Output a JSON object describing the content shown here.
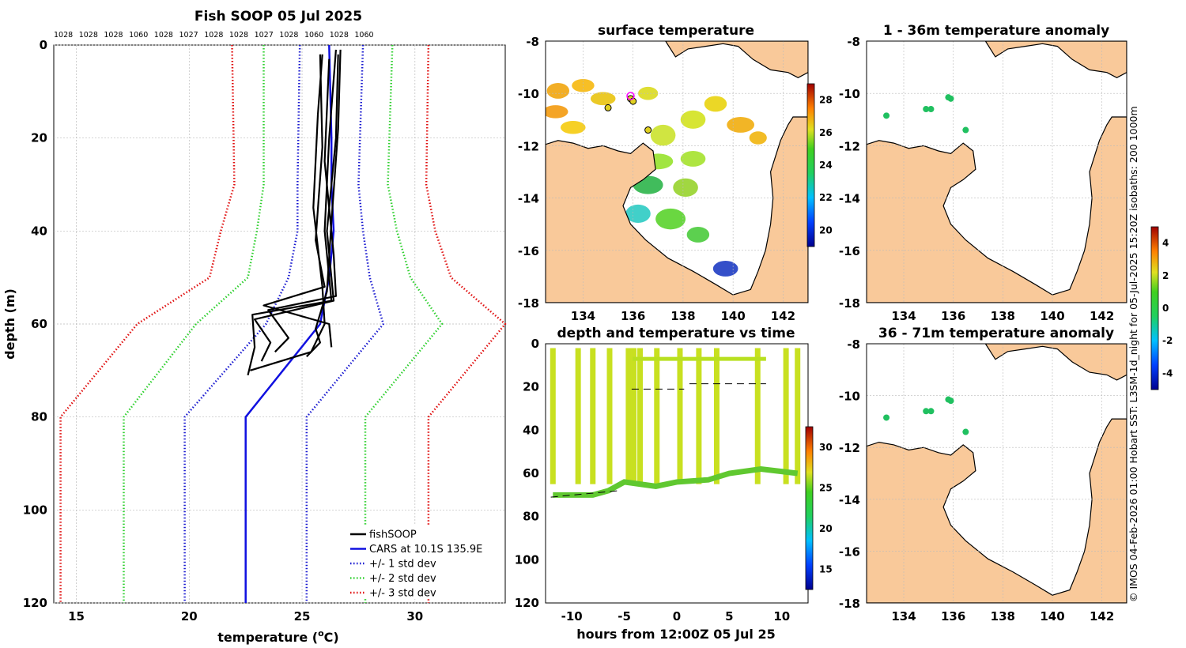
{
  "colors": {
    "land": "#f9c99a",
    "fishsoop": "#000000",
    "cars": "#1010e0",
    "std1": "#1a1ad0",
    "std2": "#30d030",
    "std3": "#e01010",
    "grid": "#bbbbbb"
  },
  "profile": {
    "title": "Fish SOOP 05 Jul 2025",
    "top_labels": [
      "1028",
      "1028",
      "1028",
      "1060",
      "1028",
      "1027",
      "1028",
      "1028",
      "1027",
      "1028",
      "1060",
      "1028",
      "1060"
    ],
    "xlabel": "temperature (",
    "xlabel_sup": "o",
    "xlabel_end": "C)",
    "ylabel": "depth (m)",
    "xticks": [
      "15",
      "20",
      "25",
      "30"
    ],
    "yticks": [
      "0",
      "20",
      "40",
      "60",
      "80",
      "100",
      "120"
    ],
    "legend": [
      "fishSOOP",
      "CARS at 10.1S 135.9E",
      "+/- 1 std dev",
      "+/- 2 std dev",
      "+/- 3 std dev"
    ]
  },
  "maps": {
    "surface_title": "surface temperature",
    "anom1_title": "1 - 36m temperature anomaly",
    "anom2_title": "36 - 71m temperature anomaly",
    "lat_ticks": [
      "-8",
      "-10",
      "-12",
      "-14",
      "-16",
      "-18"
    ],
    "lon_ticks": [
      "134",
      "136",
      "138",
      "140",
      "142"
    ],
    "sst_cb_ticks": [
      "28",
      "26",
      "24",
      "22",
      "20"
    ],
    "anom_cb_ticks": [
      "4",
      "2",
      "0",
      "-2",
      "-4"
    ]
  },
  "timeplot": {
    "title": "depth and temperature vs time",
    "xlabel": "hours from 12:00Z 05 Jul 25",
    "xticks": [
      "-10",
      "-5",
      "0",
      "5",
      "10"
    ],
    "yticks": [
      "0",
      "20",
      "40",
      "60",
      "80",
      "100",
      "120"
    ],
    "cb_ticks": [
      "30",
      "25",
      "20",
      "15"
    ]
  },
  "credit": "© IMOS 04-Feb-2026 01:00 Hobart SST: L3SM-1d_night for 05-Jul-2025 15:20Z isobaths: 200  1000m",
  "chart_data": {
    "type": "line",
    "title": "Fish SOOP 05 Jul 2025",
    "xlabel": "temperature (oC)",
    "ylabel": "depth (m)",
    "xlim": [
      14,
      34
    ],
    "ylim": [
      120,
      0
    ],
    "series": [
      {
        "name": "CARS at 10.1S 135.9E",
        "depth": [
          0,
          20,
          30,
          40,
          50,
          60,
          80,
          120
        ],
        "temp": [
          26.2,
          26.3,
          26.3,
          26.4,
          26.2,
          25.8,
          22.5,
          22.5
        ]
      },
      {
        "name": "+/- 1 std dev (low)",
        "depth": [
          0,
          30,
          40,
          50,
          60,
          80,
          120
        ],
        "temp": [
          24.9,
          24.8,
          24.8,
          24.4,
          23.4,
          19.8,
          19.8
        ]
      },
      {
        "name": "+/- 1 std dev (high)",
        "depth": [
          0,
          30,
          40,
          50,
          60,
          80,
          120
        ],
        "temp": [
          27.7,
          27.5,
          27.7,
          28.0,
          28.6,
          25.2,
          25.2
        ]
      },
      {
        "name": "+/- 2 std dev (low)",
        "depth": [
          0,
          30,
          40,
          50,
          60,
          80,
          120
        ],
        "temp": [
          23.3,
          23.3,
          23.0,
          22.6,
          20.3,
          17.1,
          17.1
        ]
      },
      {
        "name": "+/- 2 std dev (high)",
        "depth": [
          0,
          30,
          40,
          50,
          60,
          80,
          120
        ],
        "temp": [
          29.0,
          28.8,
          29.2,
          29.8,
          31.2,
          27.8,
          27.8
        ]
      },
      {
        "name": "+/- 3 std dev (low)",
        "depth": [
          0,
          30,
          40,
          50,
          60,
          80,
          120
        ],
        "temp": [
          21.9,
          22.0,
          21.4,
          20.9,
          17.7,
          14.3,
          14.3
        ]
      },
      {
        "name": "+/- 3 std dev (high)",
        "depth": [
          0,
          30,
          40,
          50,
          60,
          80,
          120
        ],
        "temp": [
          30.6,
          30.5,
          30.9,
          31.6,
          34.0,
          30.6,
          30.6
        ]
      },
      {
        "name": "fishSOOP profile 1",
        "depth": [
          1,
          20,
          40,
          55,
          58,
          65,
          71
        ],
        "temp": [
          26.5,
          26.2,
          26.0,
          26.3,
          22.8,
          22.9,
          22.6
        ]
      },
      {
        "name": "fishSOOP profile 2",
        "depth": [
          2,
          20,
          40,
          55,
          59,
          64,
          68
        ],
        "temp": [
          26.6,
          26.5,
          26.1,
          26.4,
          22.9,
          23.6,
          23.2
        ]
      },
      {
        "name": "fishSOOP profile 3",
        "depth": [
          2,
          15,
          35,
          52,
          60,
          66,
          70
        ],
        "temp": [
          25.9,
          25.7,
          25.5,
          25.9,
          26.0,
          25.4,
          22.7
        ]
      },
      {
        "name": "fishSOOP profile 4",
        "depth": [
          3,
          25,
          45,
          54,
          57,
          63,
          66
        ],
        "temp": [
          26.2,
          26.0,
          26.4,
          26.5,
          23.5,
          24.4,
          23.8
        ]
      },
      {
        "name": "fishSOOP profile 5",
        "depth": [
          1,
          18,
          38,
          53,
          61,
          64,
          67
        ],
        "temp": [
          26.7,
          26.6,
          26.3,
          26.1,
          25.6,
          25.8,
          25.2
        ]
      },
      {
        "name": "fishSOOP profile 6",
        "depth": [
          2,
          22,
          42,
          52,
          56,
          60,
          65
        ],
        "temp": [
          25.8,
          25.9,
          25.6,
          26.0,
          23.3,
          26.2,
          26.3
        ]
      }
    ]
  }
}
